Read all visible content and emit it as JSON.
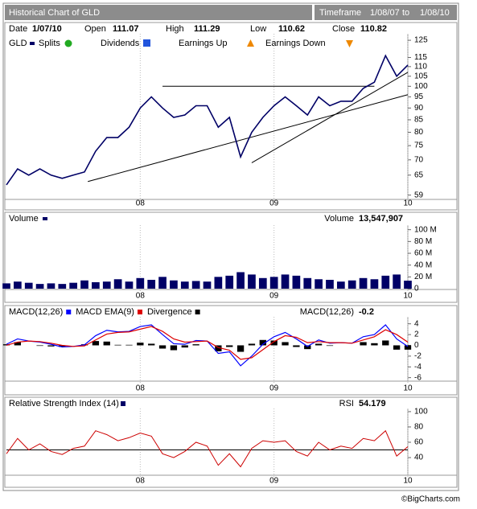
{
  "header": {
    "title": "Historical Chart of GLD",
    "timeframe": "Timeframe",
    "from": "1/08/07",
    "to_word": "to",
    "to": "1/08/10"
  },
  "info": [
    {
      "label": "Date",
      "value": "1/07/10"
    },
    {
      "label": "Open",
      "value": 111.07
    },
    {
      "label": "High",
      "value": 111.29
    },
    {
      "label": "Low",
      "value": 110.62
    },
    {
      "label": "Close",
      "value": 110.82
    }
  ],
  "chart_data": [
    {
      "type": "line",
      "log_scale": true,
      "series": [
        {
          "name": "GLD",
          "color": "#000066",
          "values": [
            62,
            67,
            65,
            67,
            65,
            64,
            65,
            66,
            73,
            78,
            78,
            82,
            90,
            95,
            90,
            86,
            87,
            91,
            91,
            82,
            86,
            71,
            80,
            86,
            91,
            95,
            91,
            87,
            95,
            91,
            93,
            93,
            99,
            102,
            116,
            105,
            110.82
          ]
        }
      ],
      "markers": [
        {
          "name": "Splits",
          "color": "#22aa22"
        },
        {
          "name": "Dividends",
          "color": "#2255dd"
        },
        {
          "name": "Earnings Up",
          "color": "#ee8800"
        },
        {
          "name": "Earnings Down",
          "color": "#ee8800"
        }
      ],
      "trendlines": [
        {
          "x": [
            7.3,
            36
          ],
          "y": [
            63,
            96
          ]
        },
        {
          "x": [
            22,
            36
          ],
          "y": [
            69,
            107
          ]
        },
        {
          "x": [
            14,
            33
          ],
          "y": [
            100,
            100
          ]
        }
      ],
      "ylim": [
        58,
        128
      ],
      "yticks": [
        59,
        65,
        70,
        75,
        80,
        85,
        90,
        95,
        100,
        105,
        110,
        115,
        125
      ],
      "xticks": [
        {
          "value": 12,
          "label": "08"
        },
        {
          "value": 24,
          "label": "09"
        },
        {
          "value": 36,
          "label": "10"
        }
      ]
    },
    {
      "type": "bar",
      "title": "Volume",
      "readout_label": "Volume",
      "readout": "13,547,907",
      "series": [
        {
          "name": "Volume",
          "color": "#000066",
          "values": [
            9000000,
            12000000,
            10000000,
            8000000,
            9000000,
            8000000,
            10000000,
            14000000,
            11000000,
            12000000,
            16000000,
            12000000,
            18000000,
            15000000,
            20000000,
            14000000,
            12000000,
            13000000,
            12000000,
            20000000,
            22000000,
            28000000,
            24000000,
            18000000,
            20000000,
            24000000,
            22000000,
            18000000,
            16000000,
            15000000,
            12000000,
            14000000,
            18000000,
            16000000,
            22000000,
            24000000,
            13547907
          ]
        }
      ],
      "ylim": [
        0,
        105000000
      ],
      "yticks": [
        0,
        {
          "value": 20000000,
          "label": "20 M"
        },
        {
          "value": 40000000,
          "label": "40 M"
        },
        {
          "value": 60000000,
          "label": "60 M"
        },
        {
          "value": 80000000,
          "label": "80 M"
        },
        {
          "value": 100000000,
          "label": "100 M"
        }
      ],
      "xticks": [
        {
          "value": 12,
          "label": "08"
        },
        {
          "value": 24,
          "label": "09"
        },
        {
          "value": 36,
          "label": "10"
        }
      ]
    },
    {
      "type": "macd",
      "readout_label": "MACD(12,26)",
      "readout": -0.2,
      "series": [
        {
          "name": "MACD(12,26)",
          "color": "#0000ff",
          "values": [
            0.2,
            1.2,
            0.8,
            0.6,
            0.2,
            -0.3,
            -0.2,
            0.1,
            1.8,
            2.8,
            2.5,
            2.6,
            3.5,
            3.8,
            2.0,
            0.3,
            0.2,
            0.9,
            0.8,
            -1.5,
            -1.2,
            -3.8,
            -2.0,
            0.2,
            1.6,
            2.4,
            1.2,
            -0.2,
            1.0,
            0.4,
            0.5,
            0.4,
            1.6,
            2.0,
            3.8,
            1.2,
            -0.2
          ]
        },
        {
          "name": "MACD EMA(9)",
          "color": "#dd0000",
          "values": [
            0.0,
            0.6,
            0.8,
            0.7,
            0.4,
            0.0,
            -0.2,
            -0.1,
            1.0,
            2.1,
            2.4,
            2.5,
            3.0,
            3.5,
            2.6,
            1.2,
            0.6,
            0.7,
            0.8,
            -0.4,
            -0.9,
            -2.6,
            -2.3,
            -0.8,
            0.7,
            1.8,
            1.5,
            0.5,
            0.7,
            0.5,
            0.5,
            0.4,
            1.0,
            1.6,
            2.9,
            2.0,
            0.6
          ]
        },
        {
          "name": "Divergence",
          "color": "#000000",
          "values": [
            0.2,
            0.6,
            0,
            -0.1,
            -0.2,
            -0.3,
            0,
            0.2,
            0.8,
            0.7,
            0.1,
            0.1,
            0.5,
            0.3,
            -0.6,
            -0.9,
            -0.4,
            0.2,
            0,
            -1.1,
            -0.3,
            -1.2,
            0.3,
            1.0,
            0.9,
            0.6,
            -0.3,
            -0.7,
            0.3,
            -0.1,
            0,
            0,
            0.6,
            0.4,
            0.9,
            -0.8,
            -0.8
          ]
        }
      ],
      "ylim": [
        -6.5,
        5
      ],
      "yticks": [
        4,
        2,
        0,
        -2,
        -4,
        -6
      ],
      "xticks": [
        {
          "value": 12,
          "label": "08"
        },
        {
          "value": 24,
          "label": "09"
        },
        {
          "value": 36,
          "label": "10"
        }
      ]
    },
    {
      "type": "line",
      "title": "Relative Strength Index (14)",
      "readout_label": "RSI",
      "readout": 54.179,
      "reference_line": 50,
      "series": [
        {
          "name": "RSI",
          "color": "#cc0000",
          "values": [
            45,
            65,
            50,
            58,
            48,
            44,
            52,
            55,
            75,
            70,
            62,
            66,
            72,
            68,
            45,
            40,
            48,
            60,
            55,
            30,
            45,
            28,
            52,
            62,
            60,
            62,
            48,
            42,
            60,
            50,
            55,
            52,
            65,
            62,
            75,
            42,
            54.179
          ]
        }
      ],
      "ylim": [
        18,
        102
      ],
      "yticks": [
        40,
        60,
        80,
        100
      ],
      "xticks": [
        {
          "value": 12,
          "label": "08"
        },
        {
          "value": 24,
          "label": "09"
        },
        {
          "value": 36,
          "label": "10"
        }
      ]
    }
  ],
  "footer": "©BigCharts.com"
}
